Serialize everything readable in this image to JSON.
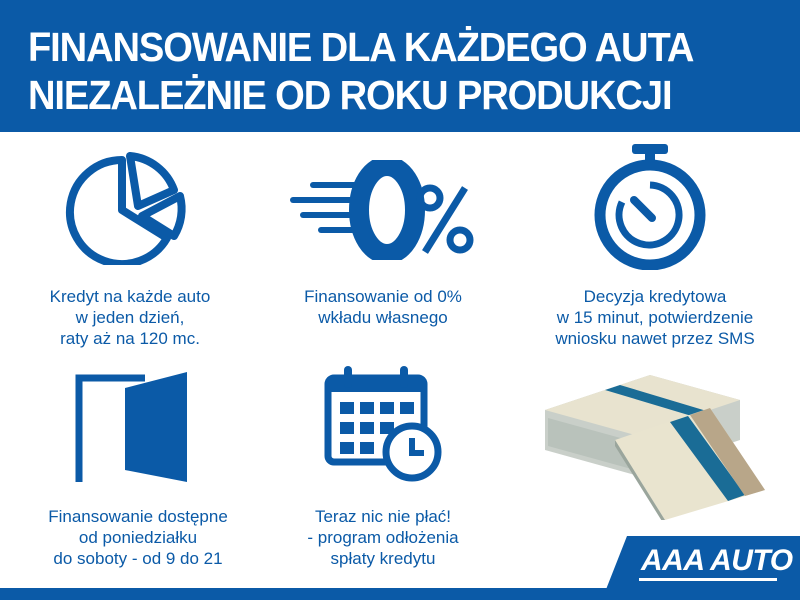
{
  "header": {
    "line1": "FINANSOWANIE DLA KAŻDEGO AUTA",
    "line2": "NIEZALEŻNIE OD ROKU PRODUKCJI"
  },
  "features": [
    {
      "icon": "pie-chart-icon",
      "lines": [
        "Kredyt na każde auto",
        "w jeden dzień,",
        "raty aż na 120 mc."
      ]
    },
    {
      "icon": "zero-percent-icon",
      "lines": [
        "Finansowanie od 0%",
        "wkładu własnego"
      ]
    },
    {
      "icon": "stopwatch-icon",
      "lines": [
        "Decyzja kredytowa",
        "w 15 minut, potwierdzenie",
        "wniosku nawet przez SMS"
      ]
    },
    {
      "icon": "open-door-icon",
      "lines": [
        "Finansowanie dostępne",
        "od poniedziałku",
        "do soboty - od 9 do 21"
      ]
    },
    {
      "icon": "calendar-clock-icon",
      "lines": [
        "Teraz nic nie płać!",
        "- program odłożenia",
        "spłaty kredytu"
      ]
    }
  ],
  "logo": {
    "text": "AAA AUTO"
  },
  "colors": {
    "brand_blue": "#0b5aa7"
  }
}
